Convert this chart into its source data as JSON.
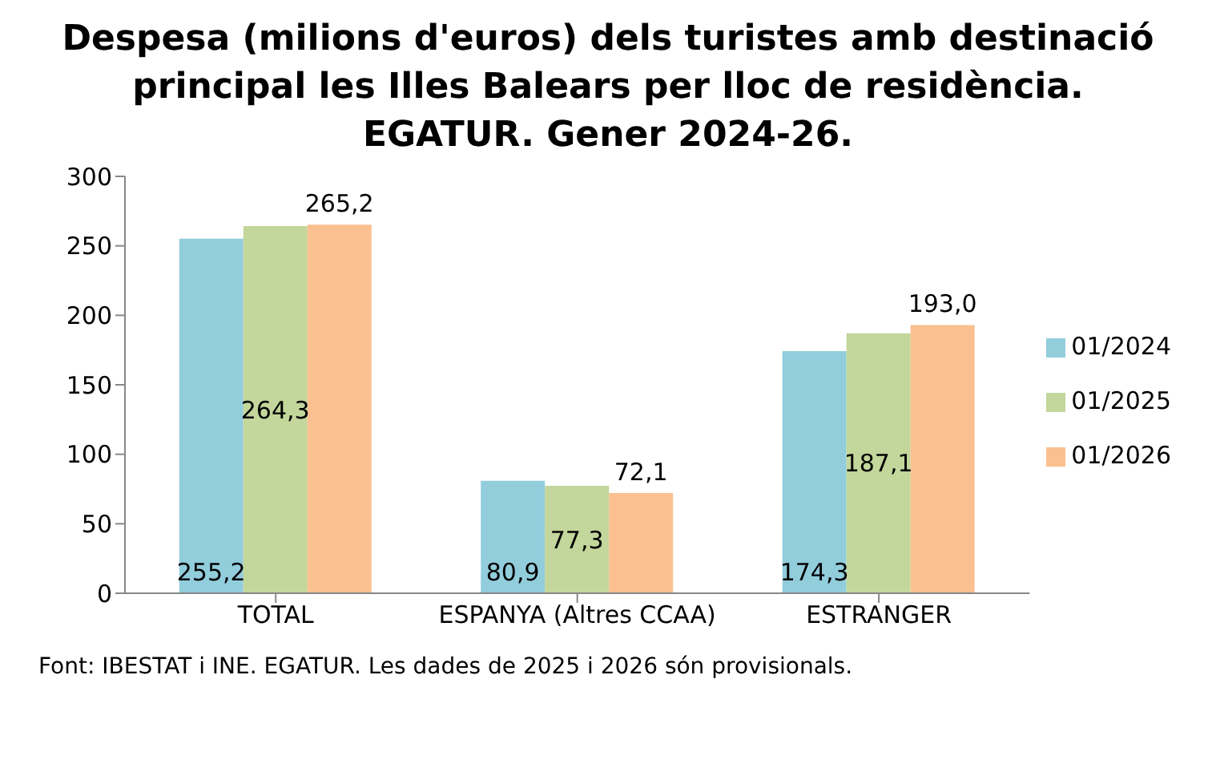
{
  "chart_data": {
    "type": "bar",
    "title": "Despesa (milions d'euros) dels turistes amb destinació principal les Illes Balears per lloc de residència. EGATUR. Gener 2024-26.",
    "categories": [
      "TOTAL",
      "ESPANYA (Altres CCAA)",
      "ESTRANGER"
    ],
    "series": [
      {
        "name": "01/2024",
        "color": "#92cddc",
        "values": [
          255.2,
          80.9,
          174.3
        ],
        "value_labels": [
          "255,2",
          "80,9",
          "174,3"
        ]
      },
      {
        "name": "01/2025",
        "color": "#c3d69b",
        "values": [
          264.3,
          77.3,
          187.1
        ],
        "value_labels": [
          "264,3",
          "77,3",
          "187,1"
        ]
      },
      {
        "name": "01/2026",
        "color": "#fac090",
        "values": [
          265.2,
          72.1,
          193.0
        ],
        "value_labels": [
          "265,2",
          "72,1",
          "193,0"
        ]
      }
    ],
    "ylim": [
      0,
      300
    ],
    "yticks": [
      0,
      50,
      100,
      150,
      200,
      250,
      300
    ],
    "grid": false,
    "legend": "right",
    "annotations": [
      "Font: IBESTAT i INE. EGATUR. Les dades de 2025 i 2026 són provisionals."
    ]
  }
}
